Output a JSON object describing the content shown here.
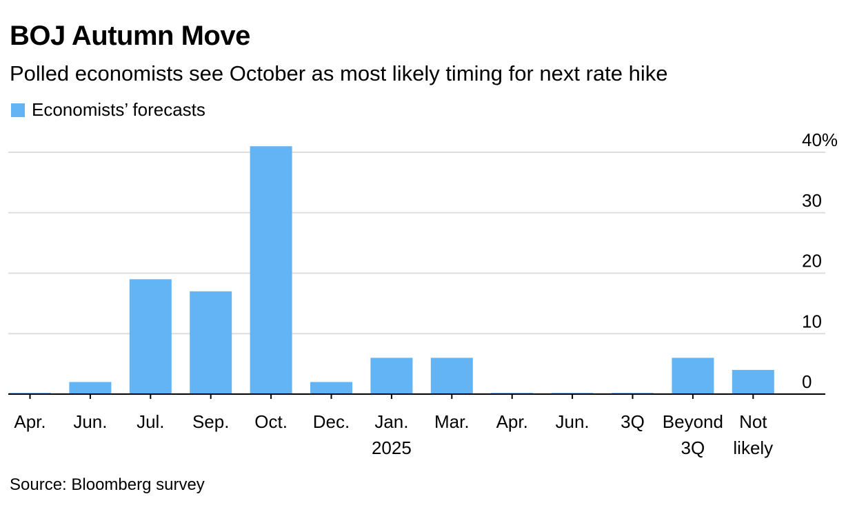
{
  "colors": {
    "bar": "#63b4f4",
    "grid": "#dddddd",
    "axis": "#000000",
    "text": "#000000"
  },
  "chart_data": {
    "type": "bar",
    "title": "BOJ Autumn Move",
    "subtitle": "Polled economists see October as most likely timing for next rate hike",
    "source": "Source: Bloomberg survey",
    "legend": {
      "position": "top-left",
      "entries": [
        "Economists’ forecasts"
      ]
    },
    "categories": [
      [
        "Apr."
      ],
      [
        "Jun."
      ],
      [
        "Jul."
      ],
      [
        "Sep."
      ],
      [
        "Oct."
      ],
      [
        "Dec."
      ],
      [
        "Jan.",
        "2025"
      ],
      [
        "Mar."
      ],
      [
        "Apr."
      ],
      [
        "Jun."
      ],
      [
        "3Q"
      ],
      [
        "Beyond",
        "3Q"
      ],
      [
        "Not",
        "likely"
      ]
    ],
    "series": [
      {
        "name": "Economists’ forecasts",
        "values": [
          0.2,
          2,
          19,
          17,
          41,
          2,
          6,
          6,
          0.2,
          0.2,
          0.2,
          6,
          4
        ]
      }
    ],
    "y_axis": {
      "ticks": [
        0,
        10,
        20,
        30,
        40
      ],
      "top_tick_label": "40%",
      "ylim": [
        0,
        40
      ],
      "position": "right"
    },
    "grid": true
  }
}
